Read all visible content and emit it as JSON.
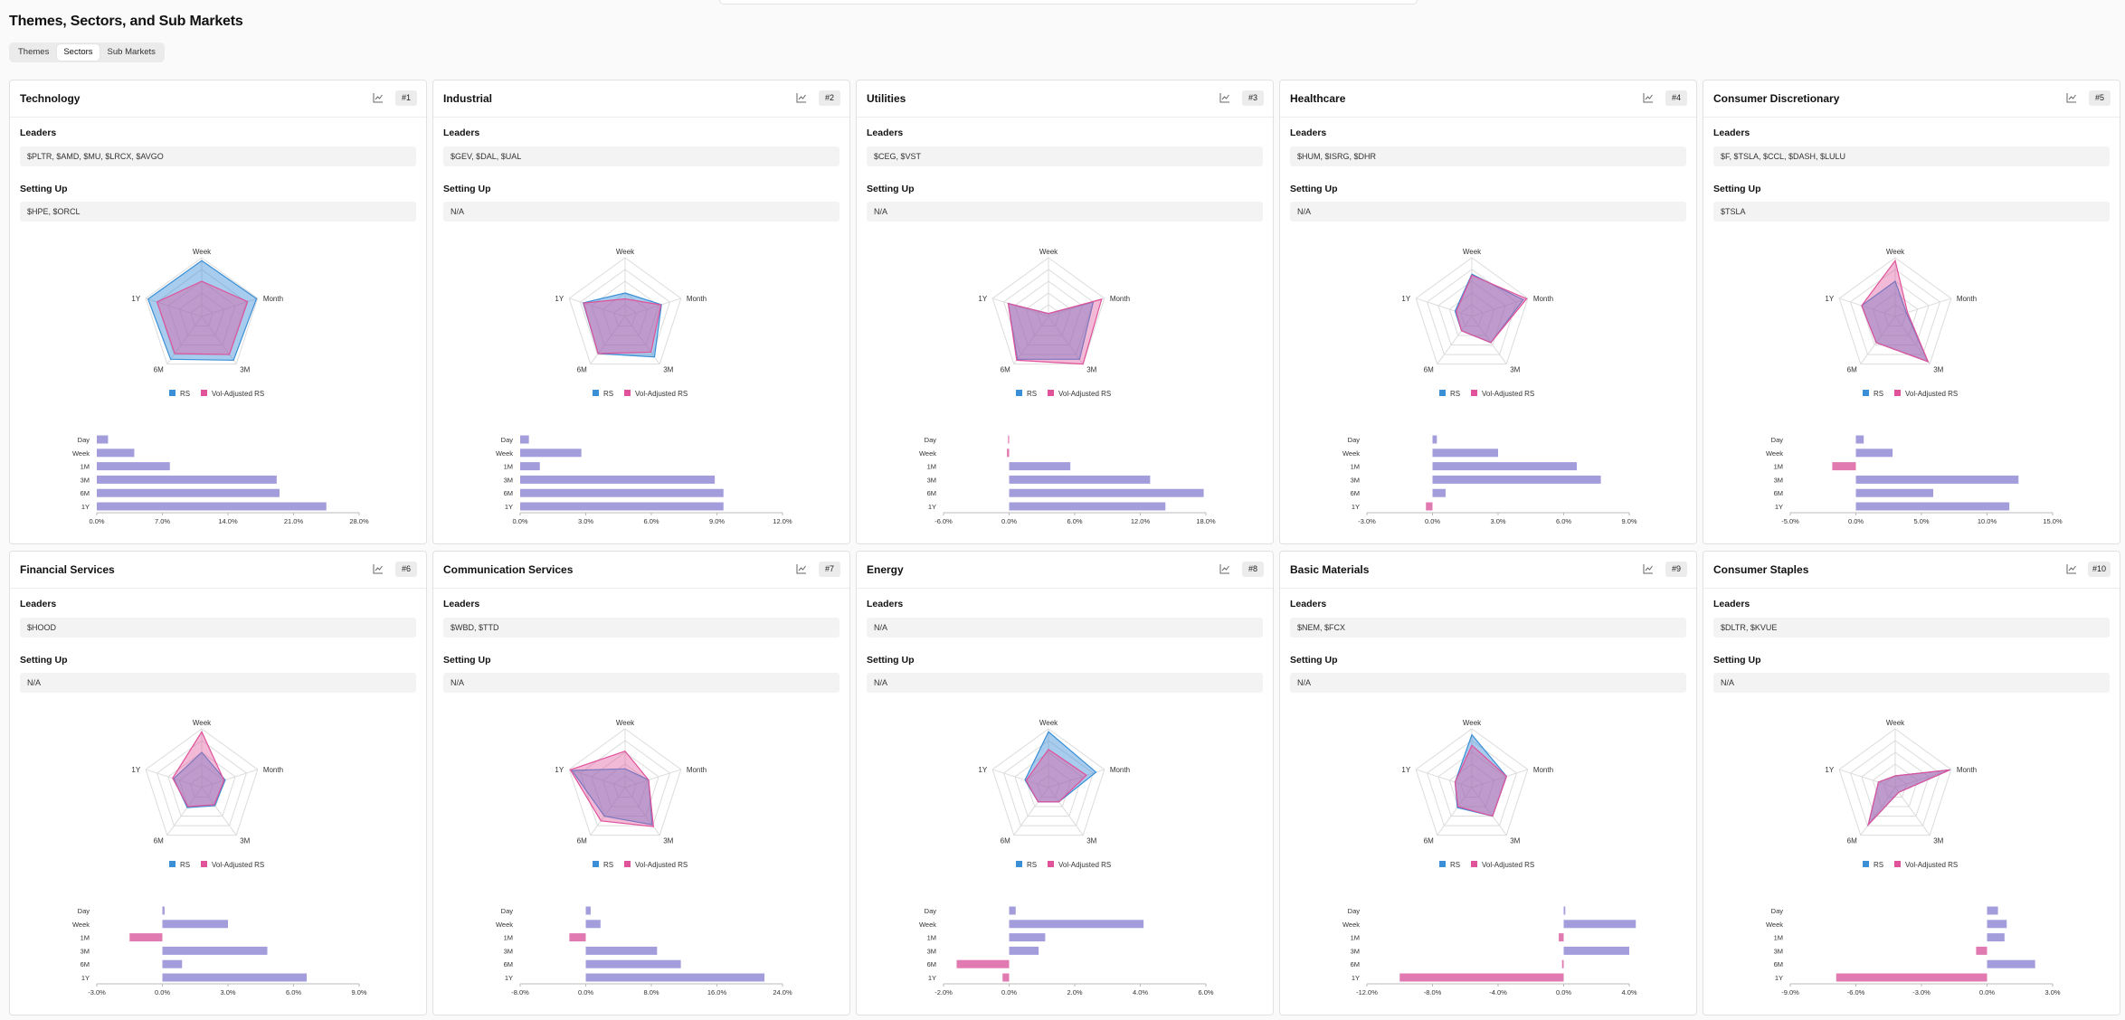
{
  "page": {
    "title": "Themes, Sectors, and Sub Markets"
  },
  "tabs": [
    {
      "label": "Themes",
      "active": false
    },
    {
      "label": "Sectors",
      "active": true
    },
    {
      "label": "Sub Markets",
      "active": false
    }
  ],
  "labels": {
    "leaders": "Leaders",
    "setting_up": "Setting Up"
  },
  "radar_axes": [
    "Week",
    "Month",
    "3M",
    "6M",
    "1Y"
  ],
  "bar_categories": [
    "Day",
    "Week",
    "1M",
    "3M",
    "6M",
    "1Y"
  ],
  "legend": {
    "rs": "RS",
    "vol_adjusted_rs": "Vol-Adjusted RS"
  },
  "colors": {
    "rs": "#3b8fd6",
    "vol_adjusted_rs": "#e0529a",
    "bar_positive": "#a39ddc",
    "bar_negative": "#e07ab0",
    "overlap": "#9a86c6"
  },
  "sectors": [
    {
      "name": "Technology",
      "rank": "#1",
      "leaders": "$PLTR, $AMD, $MU, $LRCX, $AVGO",
      "setting_up": "$HPE, $ORCL",
      "chart_data": {
        "radar": {
          "rs": [
            0.95,
            0.98,
            0.92,
            0.9,
            0.96
          ],
          "vol_adjusted": [
            0.6,
            0.82,
            0.8,
            0.78,
            0.8
          ]
        },
        "bars": [
          1.2,
          4.0,
          7.8,
          19.2,
          19.5,
          24.5
        ],
        "ticks": [
          "0.0%",
          "7.0%",
          "14.0%",
          "21.0%",
          "28.0%"
        ],
        "xlim": [
          0,
          28
        ]
      }
    },
    {
      "name": "Industrial",
      "rank": "#2",
      "leaders": "$GEV, $DAL, $UAL",
      "setting_up": "N/A",
      "chart_data": {
        "radar": {
          "rs": [
            0.4,
            0.65,
            0.85,
            0.78,
            0.75
          ],
          "vol_adjusted": [
            0.3,
            0.64,
            0.75,
            0.78,
            0.74
          ]
        },
        "bars": [
          0.4,
          2.8,
          0.9,
          8.9,
          9.3,
          9.3
        ],
        "ticks": [
          "0.0%",
          "3.0%",
          "6.0%",
          "9.0%",
          "12.0%"
        ],
        "xlim": [
          0,
          12
        ]
      }
    },
    {
      "name": "Utilities",
      "rank": "#3",
      "leaders": "$CEG, $VST",
      "setting_up": "N/A",
      "chart_data": {
        "radar": {
          "rs": [
            0.05,
            0.8,
            0.9,
            0.9,
            0.72
          ],
          "vol_adjusted": [
            0.05,
            0.95,
            1.0,
            0.92,
            0.72
          ]
        },
        "bars": [
          -0.1,
          -0.2,
          5.6,
          12.9,
          17.8,
          14.3
        ],
        "ticks": [
          "-6.0%",
          "0.0%",
          "6.0%",
          "12.0%",
          "18.0%"
        ],
        "xlim": [
          -6,
          18
        ]
      }
    },
    {
      "name": "Healthcare",
      "rank": "#4",
      "leaders": "$HUM, $ISRG, $DHR",
      "setting_up": "N/A",
      "chart_data": {
        "radar": {
          "rs": [
            0.72,
            0.92,
            0.55,
            0.3,
            0.3
          ],
          "vol_adjusted": [
            0.7,
            0.98,
            0.55,
            0.3,
            0.28
          ]
        },
        "bars": [
          0.2,
          3.0,
          6.6,
          7.7,
          0.6,
          -0.3
        ],
        "ticks": [
          "-3.0%",
          "0.0%",
          "3.0%",
          "6.0%",
          "9.0%"
        ],
        "xlim": [
          -3,
          9
        ]
      }
    },
    {
      "name": "Consumer Discretionary",
      "rank": "#5",
      "leaders": "$F, $TSLA, $CCL, $DASH, $LULU",
      "setting_up": "$TSLA",
      "chart_data": {
        "radar": {
          "rs": [
            0.6,
            0.2,
            0.95,
            0.55,
            0.6
          ],
          "vol_adjusted": [
            0.95,
            0.22,
            0.95,
            0.55,
            0.6
          ]
        },
        "bars": [
          0.6,
          2.8,
          -1.8,
          12.4,
          5.9,
          11.7
        ],
        "ticks": [
          "-5.0%",
          "0.0%",
          "5.0%",
          "10.0%",
          "15.0%"
        ],
        "xlim": [
          -5,
          15
        ]
      }
    },
    {
      "name": "Financial Services",
      "rank": "#6",
      "leaders": "$HOOD",
      "setting_up": "N/A",
      "chart_data": {
        "radar": {
          "rs": [
            0.6,
            0.42,
            0.38,
            0.42,
            0.5
          ],
          "vol_adjusted": [
            0.95,
            0.4,
            0.36,
            0.4,
            0.52
          ]
        },
        "bars": [
          0.1,
          3.0,
          -1.5,
          4.8,
          0.9,
          6.6
        ],
        "ticks": [
          "-3.0%",
          "0.0%",
          "3.0%",
          "6.0%",
          "9.0%"
        ],
        "xlim": [
          -3,
          9
        ]
      }
    },
    {
      "name": "Communication Services",
      "rank": "#7",
      "leaders": "$WBD, $TTD",
      "setting_up": "N/A",
      "chart_data": {
        "radar": {
          "rs": [
            0.32,
            0.42,
            0.78,
            0.6,
            0.95
          ],
          "vol_adjusted": [
            0.62,
            0.42,
            0.82,
            0.7,
            0.98
          ]
        },
        "bars": [
          0.6,
          1.8,
          -2.0,
          8.7,
          11.6,
          21.8
        ],
        "ticks": [
          "-8.0%",
          "0.0%",
          "8.0%",
          "16.0%",
          "24.0%"
        ],
        "xlim": [
          -8,
          24
        ]
      }
    },
    {
      "name": "Energy",
      "rank": "#8",
      "leaders": "N/A",
      "setting_up": "N/A",
      "chart_data": {
        "radar": {
          "rs": [
            0.95,
            0.85,
            0.3,
            0.3,
            0.42
          ],
          "vol_adjusted": [
            0.65,
            0.68,
            0.3,
            0.3,
            0.4
          ]
        },
        "bars": [
          0.2,
          4.1,
          1.1,
          0.9,
          -1.6,
          -0.2
        ],
        "ticks": [
          "-2.0%",
          "0.0%",
          "2.0%",
          "4.0%",
          "6.0%"
        ],
        "xlim": [
          -2,
          6
        ]
      }
    },
    {
      "name": "Basic Materials",
      "rank": "#9",
      "leaders": "$NEM, $FCX",
      "setting_up": "N/A",
      "chart_data": {
        "radar": {
          "rs": [
            0.9,
            0.62,
            0.6,
            0.42,
            0.3
          ],
          "vol_adjusted": [
            0.72,
            0.62,
            0.6,
            0.4,
            0.3
          ]
        },
        "bars": [
          0.1,
          4.4,
          -0.3,
          4.0,
          -0.1,
          -10.0
        ],
        "ticks": [
          "-12.0%",
          "-8.0%",
          "-4.0%",
          "0.0%",
          "4.0%"
        ],
        "xlim": [
          -12,
          4
        ]
      }
    },
    {
      "name": "Consumer Staples",
      "rank": "#10",
      "leaders": "$DLTR, $KVUE",
      "setting_up": "N/A",
      "chart_data": {
        "radar": {
          "rs": [
            0.2,
            0.98,
            0.1,
            0.78,
            0.3
          ],
          "vol_adjusted": [
            0.2,
            0.98,
            0.1,
            0.78,
            0.3
          ]
        },
        "bars": [
          0.5,
          0.9,
          0.8,
          -0.5,
          2.2,
          -6.9
        ],
        "ticks": [
          "-9.0%",
          "-6.0%",
          "-3.0%",
          "0.0%",
          "3.0%"
        ],
        "xlim": [
          -9,
          3
        ]
      }
    }
  ]
}
